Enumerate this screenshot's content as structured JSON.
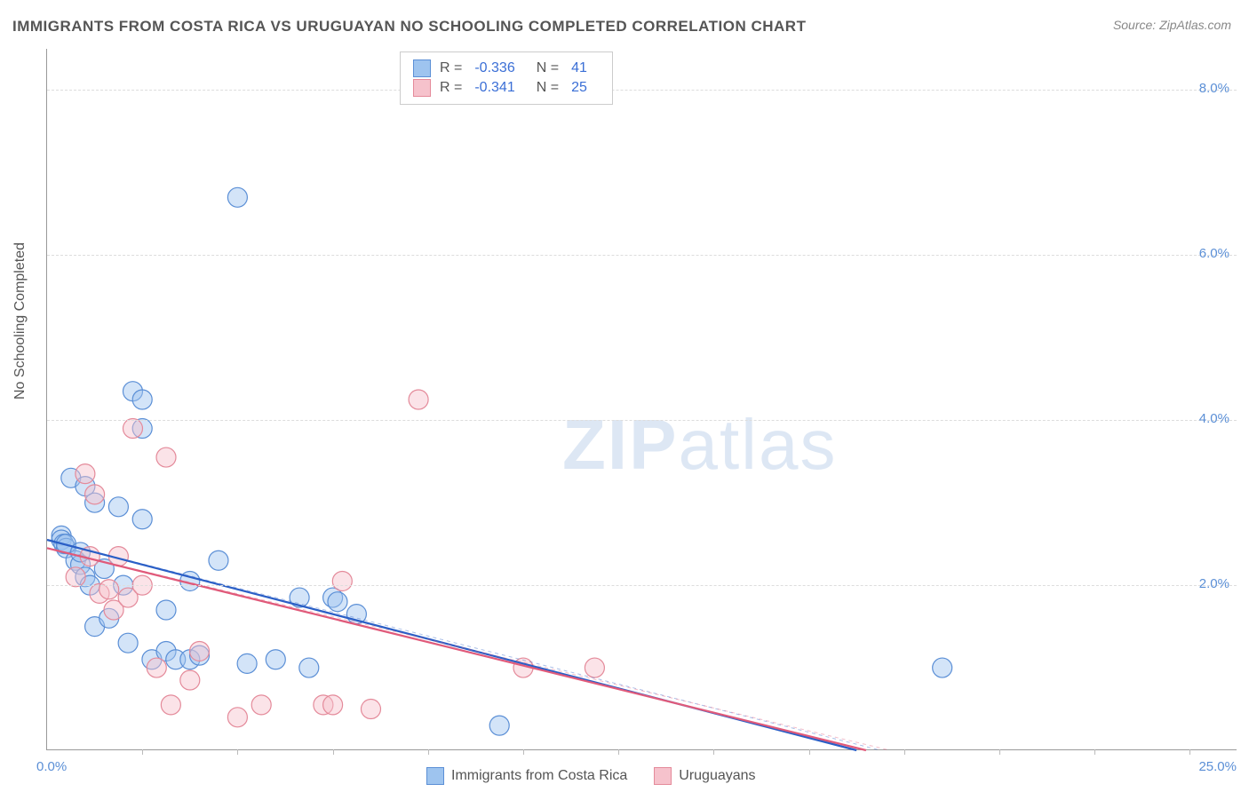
{
  "title": "IMMIGRANTS FROM COSTA RICA VS URUGUAYAN NO SCHOOLING COMPLETED CORRELATION CHART",
  "source": {
    "label": "Source:",
    "value": "ZipAtlas.com"
  },
  "watermark": {
    "part1": "ZIP",
    "part2": "atlas"
  },
  "chart": {
    "type": "scatter",
    "yaxis_title": "No Schooling Completed",
    "xlim": [
      0,
      25
    ],
    "ylim": [
      0,
      8.5
    ],
    "x_label_min": "0.0%",
    "x_label_max": "25.0%",
    "y_ticks": [
      2.0,
      4.0,
      6.0,
      8.0
    ],
    "y_tick_labels": [
      "2.0%",
      "4.0%",
      "6.0%",
      "8.0%"
    ],
    "x_minor_ticks": [
      2,
      4,
      6,
      8,
      10,
      12,
      14,
      16,
      18,
      20,
      22,
      24
    ],
    "grid_color": "#dddddd",
    "axis_color": "#999999",
    "background_color": "#ffffff",
    "marker_radius": 11,
    "marker_opacity": 0.45,
    "line_width": 2.2,
    "series": [
      {
        "name": "Immigrants from Costa Rica",
        "fill_color": "#9ec4ef",
        "stroke_color": "#5b8fd6",
        "line_color": "#2b5fc6",
        "R": "-0.336",
        "N": "41",
        "trend": {
          "x1": 0,
          "y1": 2.55,
          "x2": 17.0,
          "y2": 0.0
        },
        "points": [
          [
            0.3,
            2.6
          ],
          [
            0.3,
            2.55
          ],
          [
            0.35,
            2.5
          ],
          [
            0.4,
            2.45
          ],
          [
            0.4,
            2.5
          ],
          [
            0.5,
            3.3
          ],
          [
            0.6,
            2.3
          ],
          [
            0.7,
            2.25
          ],
          [
            0.7,
            2.4
          ],
          [
            0.8,
            3.2
          ],
          [
            0.8,
            2.1
          ],
          [
            0.9,
            2.0
          ],
          [
            1.0,
            3.0
          ],
          [
            1.0,
            1.5
          ],
          [
            1.2,
            2.2
          ],
          [
            1.3,
            1.6
          ],
          [
            1.5,
            2.95
          ],
          [
            1.6,
            2.0
          ],
          [
            1.7,
            1.3
          ],
          [
            1.8,
            4.35
          ],
          [
            2.0,
            4.25
          ],
          [
            2.0,
            2.8
          ],
          [
            2.0,
            3.9
          ],
          [
            2.2,
            1.1
          ],
          [
            2.5,
            1.7
          ],
          [
            2.5,
            1.2
          ],
          [
            2.7,
            1.1
          ],
          [
            3.0,
            1.1
          ],
          [
            3.0,
            2.05
          ],
          [
            3.2,
            1.15
          ],
          [
            3.6,
            2.3
          ],
          [
            4.0,
            6.7
          ],
          [
            4.2,
            1.05
          ],
          [
            4.8,
            1.1
          ],
          [
            5.3,
            1.85
          ],
          [
            5.5,
            1.0
          ],
          [
            6.0,
            1.85
          ],
          [
            6.1,
            1.8
          ],
          [
            6.5,
            1.65
          ],
          [
            9.5,
            0.3
          ],
          [
            18.8,
            1.0
          ]
        ]
      },
      {
        "name": "Uruguayans",
        "fill_color": "#f6c2cc",
        "stroke_color": "#e48a9a",
        "line_color": "#e05a7a",
        "R": "-0.341",
        "N": "25",
        "trend": {
          "x1": 0,
          "y1": 2.45,
          "x2": 17.2,
          "y2": 0.0
        },
        "points": [
          [
            0.6,
            2.1
          ],
          [
            0.8,
            3.35
          ],
          [
            0.9,
            2.35
          ],
          [
            1.0,
            3.1
          ],
          [
            1.1,
            1.9
          ],
          [
            1.3,
            1.95
          ],
          [
            1.4,
            1.7
          ],
          [
            1.5,
            2.35
          ],
          [
            1.7,
            1.85
          ],
          [
            1.8,
            3.9
          ],
          [
            2.0,
            2.0
          ],
          [
            2.3,
            1.0
          ],
          [
            2.5,
            3.55
          ],
          [
            2.6,
            0.55
          ],
          [
            3.0,
            0.85
          ],
          [
            3.2,
            1.2
          ],
          [
            4.0,
            0.4
          ],
          [
            4.5,
            0.55
          ],
          [
            5.8,
            0.55
          ],
          [
            6.0,
            0.55
          ],
          [
            6.2,
            2.05
          ],
          [
            6.8,
            0.5
          ],
          [
            7.8,
            4.25
          ],
          [
            10.0,
            1.0
          ],
          [
            11.5,
            1.0
          ]
        ]
      }
    ],
    "legend_bottom": [
      {
        "label": "Immigrants from Costa Rica",
        "fill": "#9ec4ef",
        "stroke": "#5b8fd6"
      },
      {
        "label": "Uruguayans",
        "fill": "#f6c2cc",
        "stroke": "#e48a9a"
      }
    ]
  }
}
